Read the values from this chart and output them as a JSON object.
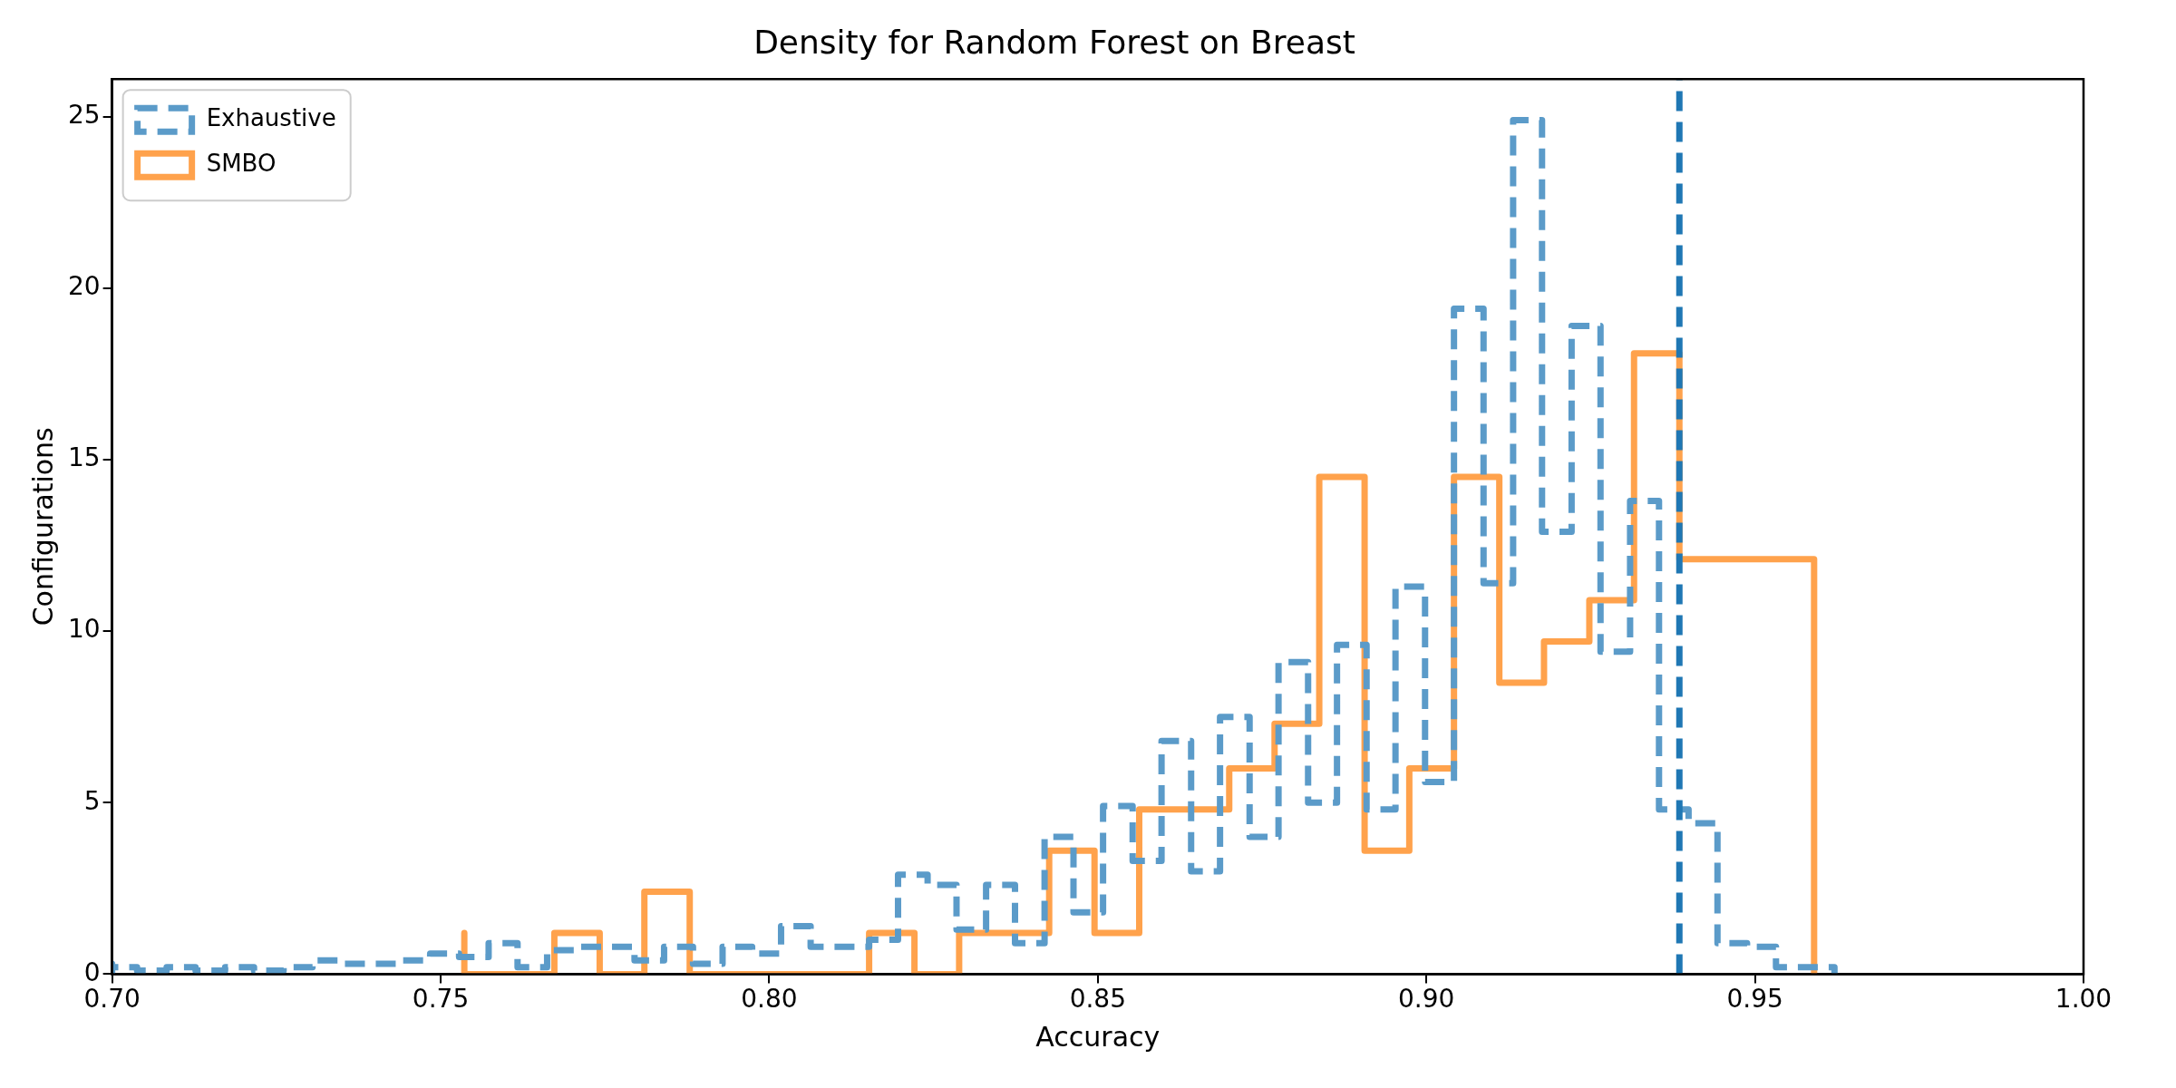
{
  "chart_data": {
    "type": "step",
    "title": "Density for Random Forest on Breast",
    "xlabel": "Accuracy",
    "ylabel": "Configurations",
    "series": [
      {
        "name": "Exhaustive",
        "color": "#5b9bc9",
        "line_style": "dashed",
        "x": [
          0.7,
          0.7,
          0.7038,
          0.7083,
          0.7127,
          0.7172,
          0.7216,
          0.7261,
          0.7305,
          0.735,
          0.7395,
          0.7439,
          0.7484,
          0.7528,
          0.7573,
          0.7617,
          0.7662,
          0.7706,
          0.7751,
          0.7795,
          0.784,
          0.7884,
          0.7929,
          0.7974,
          0.8018,
          0.8063,
          0.8107,
          0.8152,
          0.8196,
          0.8241,
          0.8285,
          0.833,
          0.8374,
          0.8419,
          0.8463,
          0.8508,
          0.8553,
          0.8597,
          0.8642,
          0.8686,
          0.8731,
          0.8775,
          0.882,
          0.8864,
          0.8909,
          0.8953,
          0.8998,
          0.9042,
          0.9087,
          0.9132,
          0.9176,
          0.9221,
          0.9265,
          0.931,
          0.9354,
          0.9399,
          0.9443,
          0.9488,
          0.9532,
          0.9577,
          0.9621,
          0.9621
        ],
        "values": [
          0,
          0.3,
          0.2,
          0.1,
          0.2,
          0.1,
          0.2,
          0.1,
          0.2,
          0.4,
          0.3,
          0.3,
          0.4,
          0.6,
          0.5,
          0.9,
          0.2,
          0.7,
          0.8,
          0.8,
          0.4,
          0.8,
          0.3,
          0.8,
          0.6,
          1.4,
          0.8,
          0.8,
          1.0,
          2.9,
          2.6,
          1.3,
          2.6,
          0.9,
          4.0,
          1.8,
          4.9,
          3.3,
          6.8,
          3.0,
          7.5,
          4.0,
          9.1,
          5.0,
          9.6,
          4.8,
          11.3,
          5.6,
          19.4,
          11.4,
          24.9,
          12.9,
          18.9,
          9.4,
          13.8,
          4.8,
          4.4,
          0.9,
          0.8,
          0.2,
          0.2,
          0
        ]
      },
      {
        "name": "SMBO",
        "color": "#ffa24c",
        "line_style": "solid",
        "x": [
          0.7536,
          0.7536,
          0.7605,
          0.7673,
          0.7742,
          0.781,
          0.7879,
          0.7947,
          0.8016,
          0.8084,
          0.8152,
          0.8221,
          0.8289,
          0.8358,
          0.8426,
          0.8495,
          0.8563,
          0.8632,
          0.87,
          0.8769,
          0.8837,
          0.8906,
          0.8974,
          0.9042,
          0.9111,
          0.9179,
          0.9248,
          0.9316,
          0.9385,
          0.9453,
          0.9522,
          0.959,
          0.959
        ],
        "values": [
          0,
          1.2,
          0,
          0,
          1.2,
          0,
          2.4,
          0,
          0,
          0,
          0,
          1.2,
          0,
          1.2,
          1.2,
          3.6,
          1.2,
          4.8,
          4.8,
          6.0,
          7.3,
          14.5,
          3.6,
          6.0,
          14.5,
          8.5,
          9.7,
          10.9,
          18.1,
          12.1,
          12.1,
          12.1,
          0
        ]
      }
    ],
    "ref_lines": [
      {
        "axis": "x",
        "value": 0.9385,
        "color": "#1f77b4",
        "line_style": "dashed"
      }
    ],
    "xlim": [
      0.7,
      1.0
    ],
    "xticks": [
      {
        "value": 0.7,
        "label": "0.70"
      },
      {
        "value": 0.75,
        "label": "0.75"
      },
      {
        "value": 0.8,
        "label": "0.80"
      },
      {
        "value": 0.85,
        "label": "0.85"
      },
      {
        "value": 0.9,
        "label": "0.90"
      },
      {
        "value": 0.95,
        "label": "0.95"
      },
      {
        "value": 1.0,
        "label": "1.00"
      }
    ],
    "ylim": [
      0,
      26.1
    ],
    "yticks": [
      0,
      5,
      10,
      15,
      20,
      25
    ],
    "grid": false,
    "legend": "top left"
  }
}
